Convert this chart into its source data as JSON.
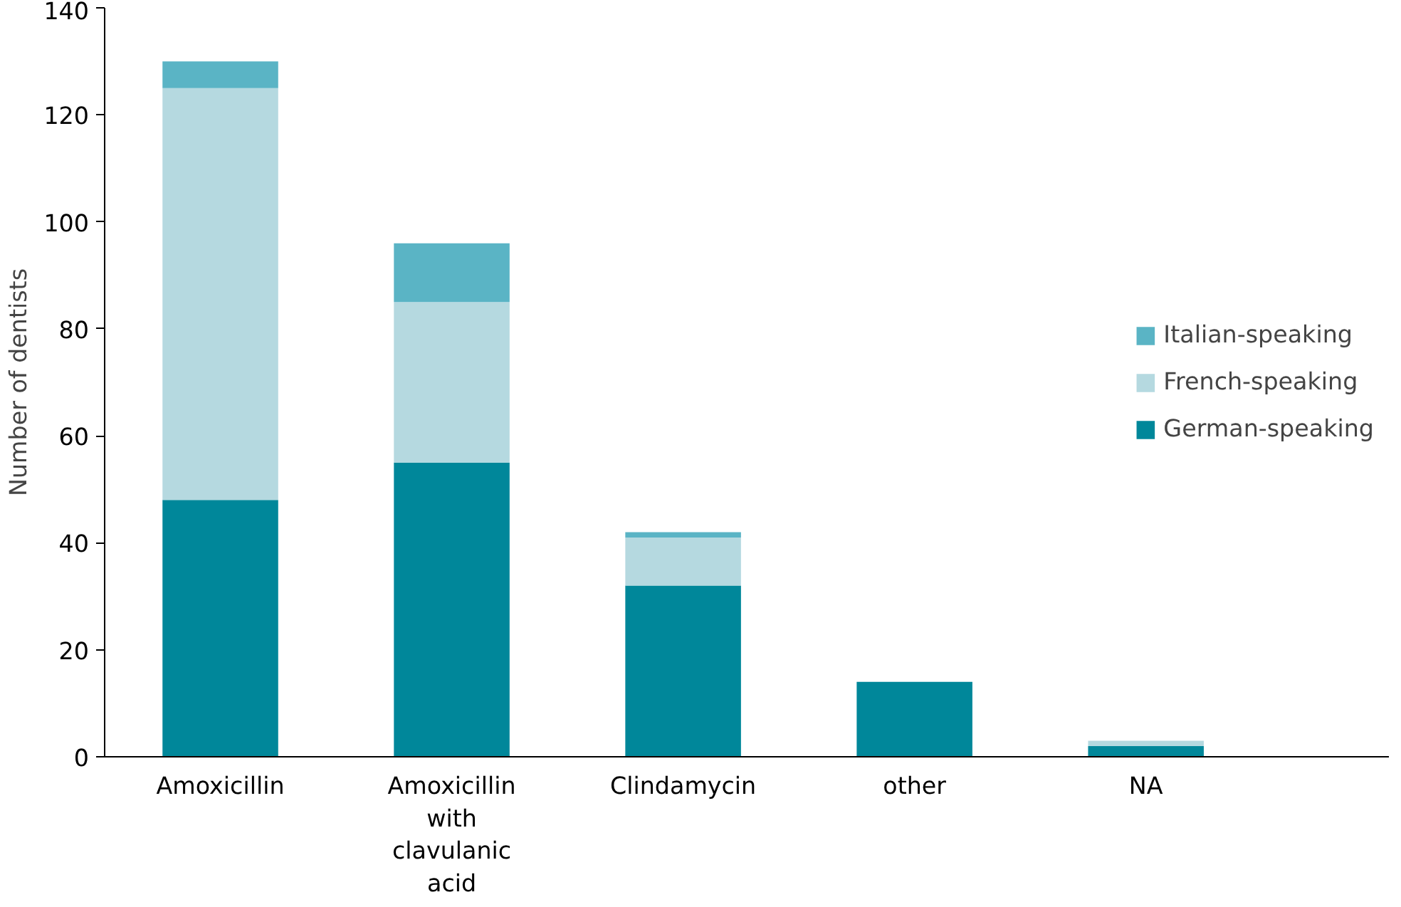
{
  "chart_data": {
    "type": "bar",
    "stacked": true,
    "ylabel": "Number of dentists",
    "categories": [
      "Amoxicillin",
      "Amoxicillin with clavulanic acid",
      "Clindamycin",
      "other",
      "NA"
    ],
    "series": [
      {
        "name": "German-speaking",
        "color": "#00879a",
        "values": [
          48,
          55,
          32,
          14,
          2
        ]
      },
      {
        "name": "French-speaking",
        "color": "#b5d9e0",
        "values": [
          77,
          30,
          9,
          0,
          1
        ]
      },
      {
        "name": "Italian-speaking",
        "color": "#5ab4c5",
        "values": [
          5,
          11,
          1,
          0,
          0
        ]
      }
    ],
    "ylim": [
      0,
      140
    ],
    "yticks": [
      0,
      20,
      40,
      60,
      80,
      100,
      120,
      140
    ],
    "grid": false,
    "legend": "right"
  }
}
